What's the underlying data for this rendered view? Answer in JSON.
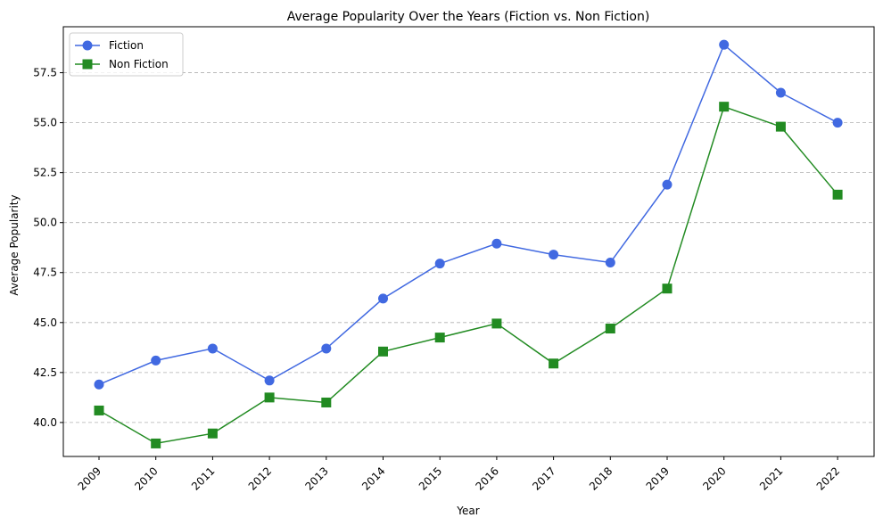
{
  "chart_data": {
    "type": "line",
    "title": "Average Popularity Over the Years (Fiction vs. Non Fiction)",
    "xlabel": "Year",
    "ylabel": "Average Popularity",
    "categories": [
      "2009",
      "2010",
      "2011",
      "2012",
      "2013",
      "2014",
      "2015",
      "2016",
      "2017",
      "2018",
      "2019",
      "2020",
      "2021",
      "2022"
    ],
    "ylim": [
      38.3,
      59.8
    ],
    "yticks": [
      40.0,
      42.5,
      45.0,
      47.5,
      50.0,
      52.5,
      55.0,
      57.5
    ],
    "ytick_labels": [
      "40.0",
      "42.5",
      "45.0",
      "47.5",
      "50.0",
      "52.5",
      "55.0",
      "57.5"
    ],
    "grid": "y-dashed",
    "legend_position": "top-left",
    "series": [
      {
        "name": "Fiction",
        "color": "#4169e1",
        "marker": "circle",
        "values": [
          41.9,
          43.1,
          43.7,
          42.1,
          43.7,
          46.2,
          47.95,
          48.95,
          48.4,
          48.0,
          51.9,
          58.9,
          56.5,
          55.0
        ]
      },
      {
        "name": "Non Fiction",
        "color": "#228b22",
        "marker": "square",
        "values": [
          40.6,
          38.95,
          39.45,
          41.25,
          41.0,
          43.55,
          44.25,
          44.95,
          42.95,
          44.7,
          46.7,
          55.8,
          54.8,
          51.4
        ]
      }
    ]
  }
}
